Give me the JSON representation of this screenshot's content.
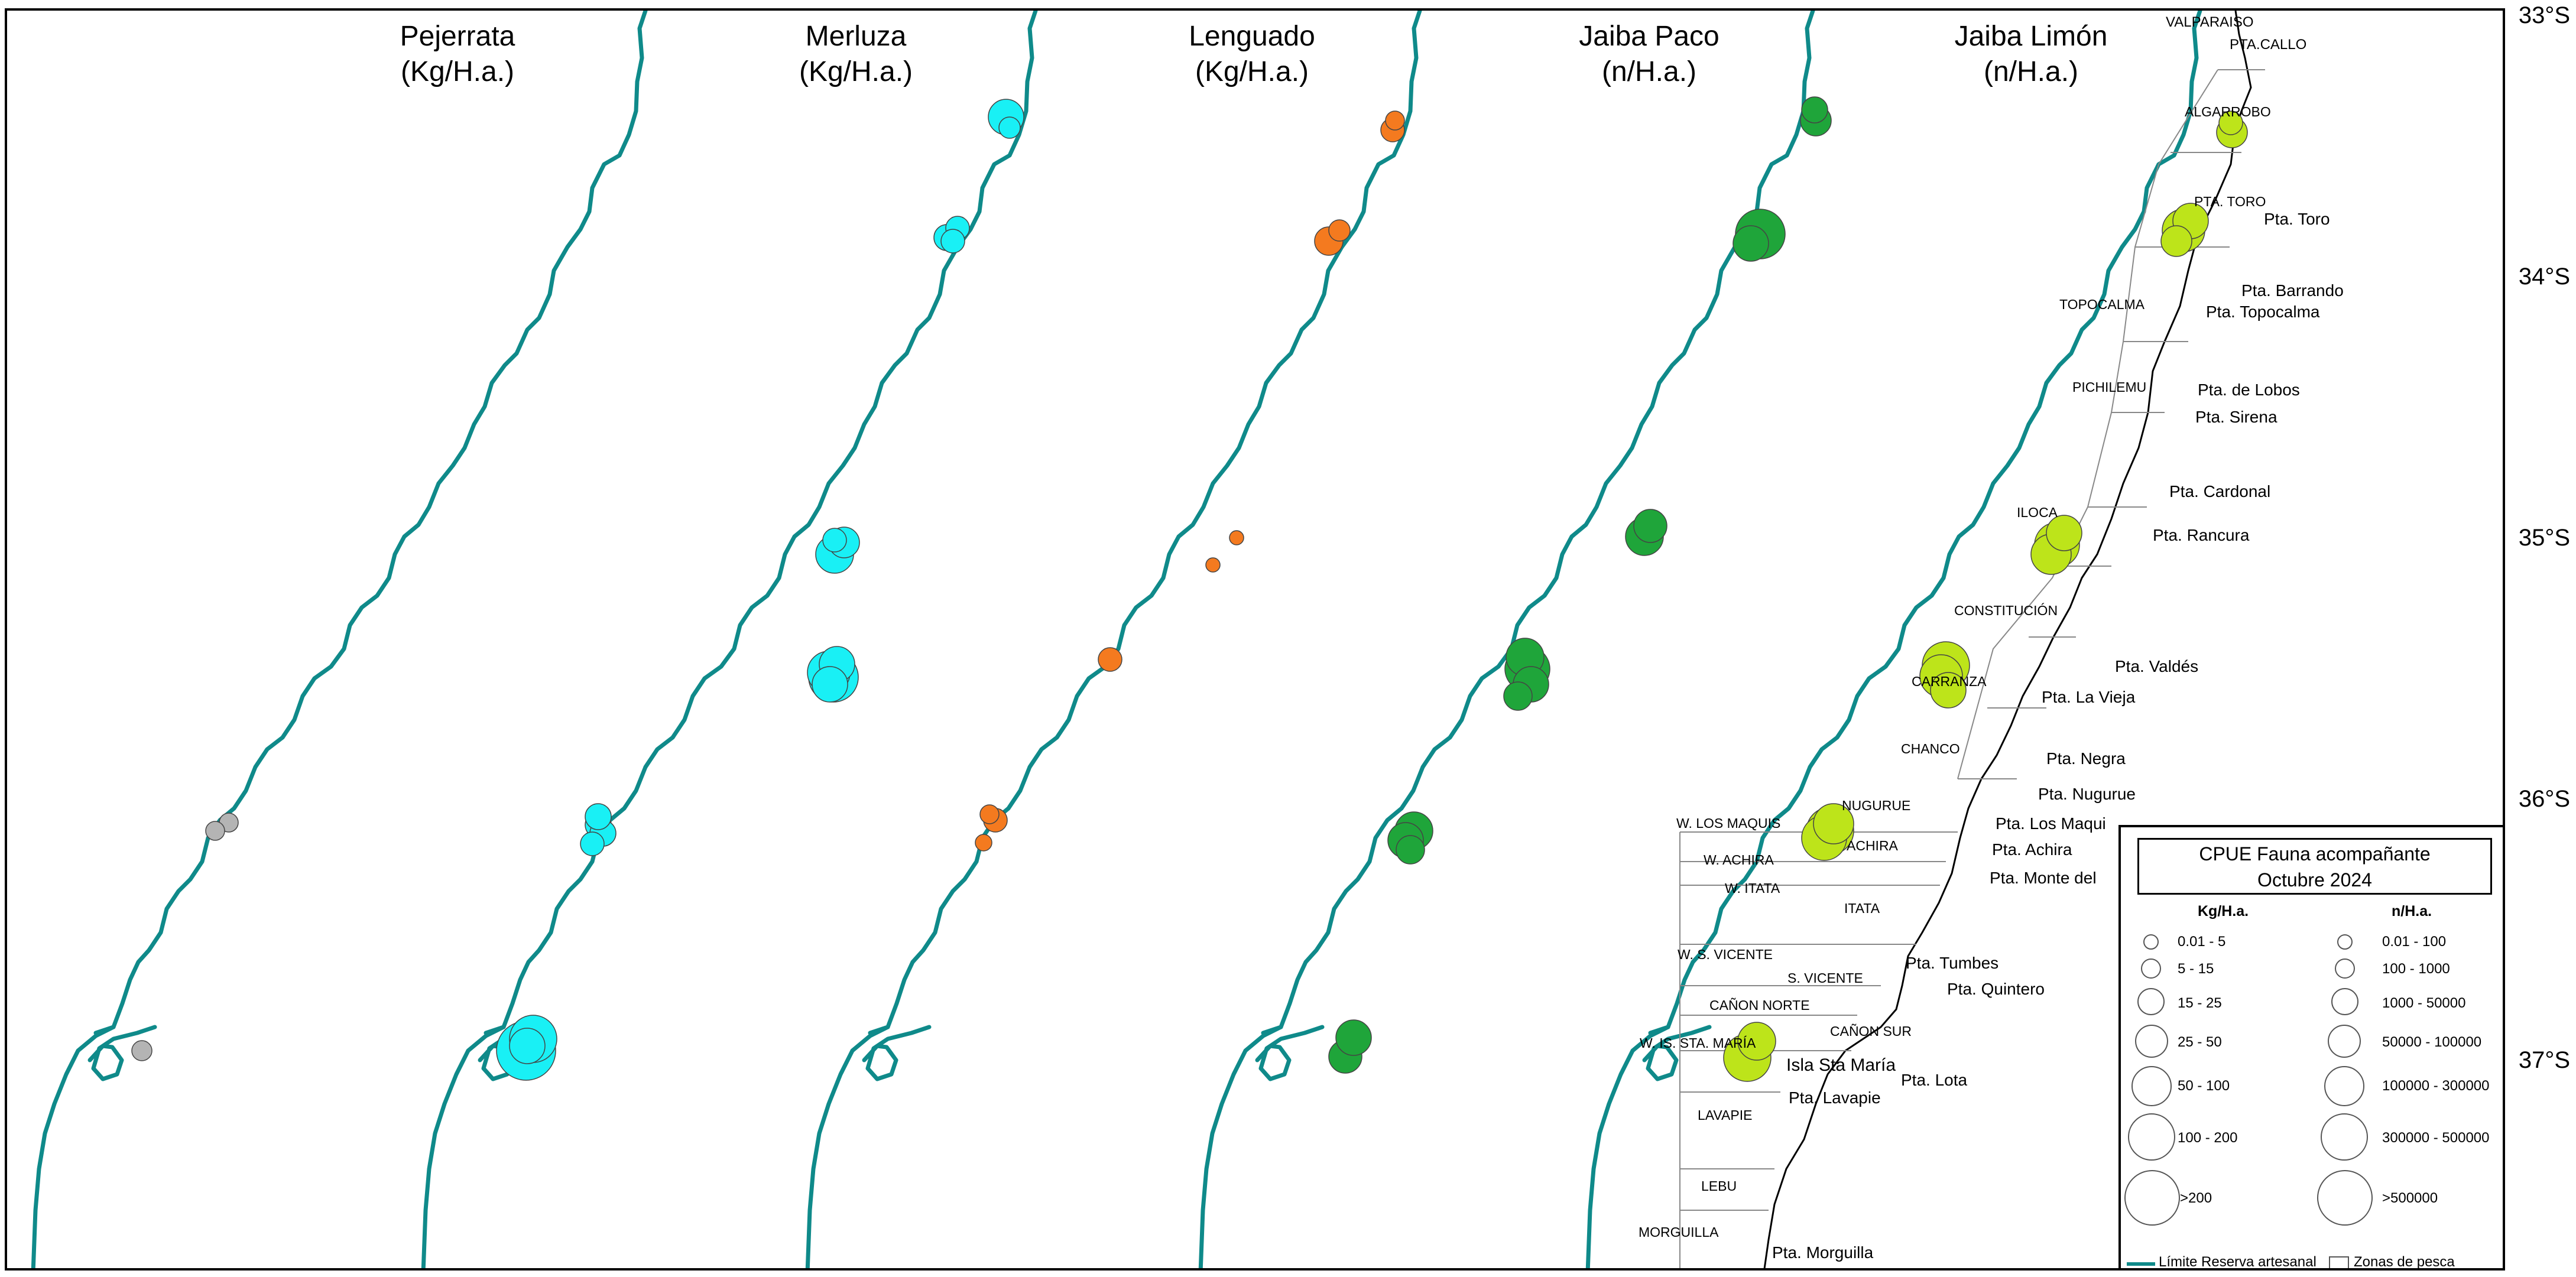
{
  "panels": [
    {
      "species": "Pejerrata",
      "unit": "(Kg/H.a.)"
    },
    {
      "species": "Merluza",
      "unit": "(Kg/H.a.)"
    },
    {
      "species": "Lenguado",
      "unit": "(Kg/H.a.)"
    },
    {
      "species": "Jaiba Paco",
      "unit": "(n/H.a.)"
    },
    {
      "species": "Jaiba Limón",
      "unit": "(n/H.a.)"
    }
  ],
  "latitudes": [
    "33°S",
    "34°S",
    "35°S",
    "36°S",
    "37°S"
  ],
  "colors": {
    "pejerrata": "#b4b4b4",
    "merluza": "#19f0f5",
    "lenguado": "#f47a1f",
    "jaiba_paco": "#1fa53a",
    "jaiba_limon": "#bde41a",
    "reserve_line": "#0f8a8a",
    "coastline": "#000000",
    "zone_lines": "#888888"
  },
  "headlands": [
    "VALPARAISO",
    "PTA.CALLO",
    "Pta. Toro",
    "Pta. Barrando",
    "Pta. Topocalma",
    "Pta. de Lobos",
    "Pta. Sirena",
    "Pta. Cardonal",
    "Pta. Rancura",
    "Pta. Valdés",
    "Pta. La Vieja",
    "Pta. Negra",
    "Pta. Nugurue",
    "Pta. Los Maqui",
    "Pta. Achira",
    "Pta. Monte del",
    "Pta. Tumbes",
    "Pta. Quintero",
    "Pta. Lota",
    "Pta. Lavapie",
    "Isla Sta María",
    "Pta. Morguilla"
  ],
  "zones": [
    "ALGARROBO",
    "PTA. TORO",
    "TOPOCALMA",
    "PICHILEMU",
    "ILOCA",
    "CONSTITUCIÓN",
    "CARRANZA",
    "CHANCO",
    "NUGURUE",
    "W. LOS MAQUIS",
    "W. ACHIRA",
    "ACHIRA",
    "W. ITATA",
    "ITATA",
    "W. S. VICENTE",
    "S. VICENTE",
    "CAÑON NORTE",
    "CAÑON SUR",
    "W. IS. STA. MARÍA",
    "LAVAPIE",
    "LEBU",
    "MORGUILLA"
  ],
  "legend": {
    "title_line1": "CPUE Fauna acompañante",
    "title_line2": "Octubre 2024",
    "kg_header": "Kg/H.a.",
    "n_header": "n/H.a.",
    "kg_classes": [
      "0.01 - 5",
      "5 - 15",
      "15 - 25",
      "25 - 50",
      "50 - 100",
      "100 - 200",
      ">200"
    ],
    "n_classes": [
      "0.01 - 100",
      "100 - 1000",
      "1000 - 50000",
      "50000 - 100000",
      "100000 - 300000",
      "300000 - 500000",
      ">500000"
    ],
    "line_label": "Límite Reserva artesanal",
    "zone_label": "Zonas de pesca"
  }
}
